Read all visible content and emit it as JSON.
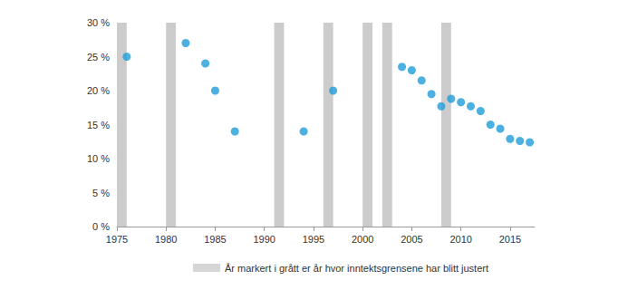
{
  "chart_data": {
    "type": "scatter",
    "x": [
      1976,
      1982,
      1984,
      1985,
      1987,
      1994,
      1997,
      2004,
      2005,
      2006,
      2007,
      2008,
      2009,
      2010,
      2011,
      2012,
      2013,
      2014,
      2015,
      2016,
      2017
    ],
    "values": [
      25,
      27,
      24,
      20,
      14,
      14,
      20,
      23.5,
      23,
      21.5,
      19.5,
      17.7,
      18.8,
      18.3,
      17.7,
      17,
      15,
      14.4,
      12.9,
      12.6,
      12.4
    ],
    "color": "#1f9ed9",
    "marker": "circle",
    "xlim": [
      1975,
      2017.5
    ],
    "xticks": [
      1975,
      1980,
      1985,
      1990,
      1995,
      2000,
      2005,
      2010,
      2015
    ],
    "ylim": [
      0,
      30
    ],
    "yticks": [
      {
        "value": 0,
        "label": "0 %"
      },
      {
        "value": 5,
        "label": "5 %"
      },
      {
        "value": 10,
        "label": "10 %"
      },
      {
        "value": 15,
        "label": "15 %"
      },
      {
        "value": 20,
        "label": "20 %"
      },
      {
        "value": 25,
        "label": "25 %"
      },
      {
        "value": 30,
        "label": "30 %"
      }
    ],
    "grid": false,
    "legend": "bottom",
    "bands": {
      "name": "År markert i grått er år hvor inntektsgrensene har blitt justert",
      "color": "#cccccc",
      "x": [
        1975,
        1980,
        1991,
        1996,
        2000,
        2002,
        2008
      ]
    }
  }
}
